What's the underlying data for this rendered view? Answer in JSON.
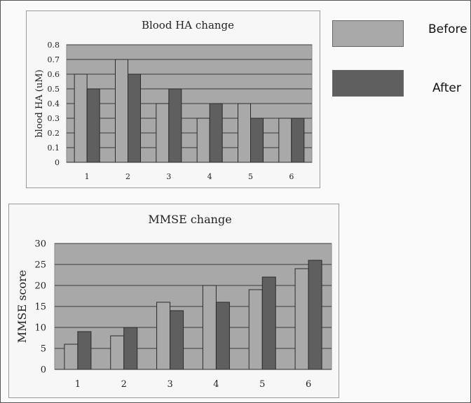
{
  "legend": {
    "before_label": "Before",
    "after_label": "After",
    "before_color": "#a9a9a9",
    "after_color": "#5f5f5f"
  },
  "chart_data": [
    {
      "type": "bar",
      "title": "Blood HA change",
      "xlabel": "",
      "ylabel": "blood HA (uM)",
      "categories": [
        "1",
        "2",
        "3",
        "4",
        "5",
        "6"
      ],
      "ylim": [
        0,
        0.8
      ],
      "yticks": [
        "0",
        "0.1",
        "0.2",
        "0.3",
        "0.4",
        "0.5",
        "0.6",
        "0.7",
        "0.8"
      ],
      "grid": true,
      "plot_background": "#a8a8a8",
      "series": [
        {
          "name": "Before",
          "color": "#a9a9a9",
          "values": [
            0.6,
            0.7,
            0.4,
            0.3,
            0.4,
            0.3
          ]
        },
        {
          "name": "After",
          "color": "#5f5f5f",
          "values": [
            0.5,
            0.6,
            0.5,
            0.4,
            0.3,
            0.3
          ]
        }
      ]
    },
    {
      "type": "bar",
      "title": "MMSE change",
      "xlabel": "",
      "ylabel": "MMSE score",
      "categories": [
        "1",
        "2",
        "3",
        "4",
        "5",
        "6"
      ],
      "ylim": [
        0,
        30
      ],
      "yticks": [
        "0",
        "5",
        "10",
        "15",
        "20",
        "25",
        "30"
      ],
      "grid": true,
      "plot_background": "#a8a8a8",
      "series": [
        {
          "name": "Before",
          "color": "#a9a9a9",
          "values": [
            6,
            8,
            16,
            20,
            19,
            24
          ]
        },
        {
          "name": "After",
          "color": "#5f5f5f",
          "values": [
            9,
            10,
            14,
            16,
            22,
            26
          ]
        }
      ]
    }
  ]
}
